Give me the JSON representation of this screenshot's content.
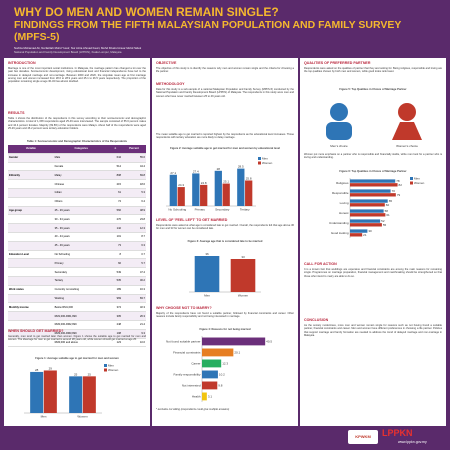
{
  "header": {
    "title": "WHY DO MEN AND WOMEN REMAIN SINGLE?",
    "subtitle": "FINDINGS FROM THE FIFTH MALAYSIAN POPULATION AND FAMILY SURVEY (MPFS-5)",
    "authors": "Norliza Mohamad Ali, Norfazilah Mohd Yusof, Nur Azira Ahmad Fauzi, Mohd Khairul Anuar Mohd Sidek",
    "affiliation": "National Population and Family Development Board (LPPKN), Kuala Lumpur, Malaysia"
  },
  "col1": {
    "intro": {
      "heading": "INTRODUCTION",
      "text": "Marriage is one of the most important social institutions. In Malaysia, the marriage pattern has changed a lot over the past few decades. Socioeconomic development, rising educational level and financial independence have led to the increase in delayed marriage and non-marriage. Between 2000 and 2020, the singulate mean age at first marriage among men and women increased from 28.6 to 28.9 years and 25.1 to 26.5 years respectively. The proportion of the population remaining single at age 30-34 has almost doubled."
    },
    "results": {
      "heading": "RESULTS",
      "text": "Table 1 shows the distribution of the respondents in this survey according to their socioeconomic and demographic characteristics. A total of 1,158 respondents aged 25-49 were interviewed. The sample consisted of 55.6 percent males and 44.4 percent females. Majority (69.8%) of the respondents were Malays. About half of the respondents were aged 25-29 years and 46.2 percent were tertiary education holders."
    },
    "table": {
      "caption": "Table 1: Socioeconomic and Demographic Characteristics of the Respondents",
      "columns": [
        "Variable",
        "Categories",
        "n",
        "Percent"
      ],
      "rows": [
        [
          "Gender",
          "Male",
          "644",
          "55.6"
        ],
        [
          "",
          "Female",
          "514",
          "44.4"
        ],
        [
          "Ethnicity",
          "Malay",
          "808",
          "69.8"
        ],
        [
          "",
          "Chinese",
          "215",
          "18.6"
        ],
        [
          "",
          "Indian",
          "61",
          "5.3"
        ],
        [
          "",
          "Others",
          "74",
          "6.4"
        ],
        [
          "Age group",
          "25 - 29 years",
          "566",
          "48.9"
        ],
        [
          "",
          "30 - 34 years",
          "276",
          "23.8"
        ],
        [
          "",
          "35 - 39 years",
          "142",
          "12.3"
        ],
        [
          "",
          "40 - 44 years",
          "101",
          "8.7"
        ],
        [
          "",
          "45 - 49 years",
          "73",
          "6.3"
        ],
        [
          "Education Level",
          "No Schooling",
          "8",
          "0.7"
        ],
        [
          "",
          "Primary",
          "66",
          "5.7"
        ],
        [
          "",
          "Secondary",
          "549",
          "47.4"
        ],
        [
          "",
          "Tertiary",
          "535",
          "46.2"
        ],
        [
          "Work status",
          "Currently not working",
          "189",
          "16.3"
        ],
        [
          "",
          "Working",
          "969",
          "83.7"
        ],
        [
          "Monthly income",
          "Below RM1,000",
          "374",
          "32.3"
        ],
        [
          "",
          "RM1,000-RM1,999",
          "305",
          "26.3"
        ],
        [
          "",
          "RM2,000-RM2,999",
          "248",
          "21.4"
        ],
        [
          "",
          "RM3,000-RM3,999",
          "108",
          "9.3"
        ],
        [
          "",
          "RM4,000 and above",
          "123",
          "10.6"
        ]
      ]
    },
    "when": {
      "heading": "WHEN SHOULD GET MARRIED?",
      "text": "Generally, men tend to get married later than women. Figure 1 shows the suitable age to get married for men and women. The ideal age for men to get married is around 28 years old, while women should get married at age 25."
    },
    "figure1": {
      "caption": "Figure 1: Average suitable age to get married for men and women",
      "categories": [
        "Men",
        "Women"
      ],
      "series": [
        {
          "name": "Men",
          "color": "#2e75b6",
          "values": [
            28,
            25
          ]
        },
        {
          "name": "Women",
          "color": "#c0392b",
          "values": [
            29,
            25
          ]
        }
      ],
      "ylim": [
        0,
        30
      ]
    }
  },
  "col2": {
    "objective": {
      "heading": "OBJECTIVE",
      "text": "The objective of this study is to identify the reasons why men and women remain single and the criteria for choosing a life partner."
    },
    "methodology": {
      "heading": "METHODOLOGY",
      "text": "Data for this study is a sub-sample of a national Malaysian Population and Family Survey (MPFS-5) conducted by the National Population and Family Development Board (LPPKN) of Malaysia. The respondents in this study were men and women who have never married between 25 to 49 years old."
    },
    "para": "The mean suitable age to get married is reported highest by the respondents as the educational level increases. Those respondents with tertiary education are more likely to delay marriage.",
    "figure2": {
      "caption": "Figure 2: Average suitable age to get married for men and women by educational level",
      "categories": [
        "No Schooling",
        "Primary",
        "Secondary",
        "Tertiary"
      ],
      "series": [
        {
          "name": "Men",
          "color": "#2e75b6",
          "values": [
            27.1,
            27.4,
            28.0,
            28.5
          ]
        },
        {
          "name": "Women",
          "color": "#c0392b",
          "values": [
            24.3,
            24.8,
            25.1,
            25.8
          ]
        }
      ],
      "ylim": [
        20,
        30
      ]
    },
    "left": {
      "heading": "LEVEL OF 'FEEL LEFT' TO GET MARRIED",
      "text": "Respondents were asked at what age is considered late to get married. Overall, the respondents felt that age above 36 for men and 33 for women can be considered late."
    },
    "figure3": {
      "caption": "Figure 3: Average age that is considered late to be married",
      "categories": [
        "Men",
        "Women"
      ],
      "values": [
        36,
        33
      ],
      "colors": [
        "#2e75b6",
        "#c0392b"
      ],
      "ylim": [
        0,
        40
      ]
    },
    "why": {
      "heading": "WHY CHOOSE NOT TO MARRY?",
      "text": "Majority of the respondents have not found a suitable partner, followed by financial constraints and career. Other reasons include family responsibility and not being interested in marriage."
    },
    "figure4": {
      "caption": "Figure 4: Reasons for not being married",
      "categories": [
        "Not found suitable partner",
        "Financial constraints",
        "Career",
        "Family responsibility",
        "Not interested",
        "Health"
      ],
      "values": [
        40.5,
        20.1,
        12.3,
        10.2,
        9.8,
        3.1
      ],
      "colors": [
        "#6b2f7a",
        "#e67e22",
        "#27ae60",
        "#2e75b6",
        "#c0392b",
        "#f1c40f"
      ],
      "xlim": [
        0,
        50
      ]
    },
    "note": "* excludes not willing (respondents could give multiple answers)"
  },
  "col3": {
    "qualities": {
      "heading": "QUALITIES OF PREFERRED PARTNER",
      "text": "Respondents were asked on the qualities of partner that they are looking for. Being religious, responsible and loving are the top qualities chosen by both men and women, while good looks rank lower."
    },
    "figure5": {
      "caption": "Figure 5: Top Qualities in Choice of Marriage Partner",
      "labels": [
        "Men's choice",
        "Women's choice"
      ]
    },
    "text2": "Women put more emphasis on a partner who is responsible and financially stable, while men look for a partner who is loving and understanding.",
    "figure6": {
      "caption": "Figure 6: Top Qualities in Choice of Marriage Partner",
      "categories": [
        "Religious",
        "Responsible",
        "Loving",
        "Honest",
        "Understanding",
        "Good looking"
      ],
      "series": [
        {
          "name": "Men",
          "color": "#2e75b6",
          "values": [
            78,
            70,
            65,
            58,
            52,
            30
          ]
        },
        {
          "name": "Women",
          "color": "#c0392b",
          "values": [
            82,
            79,
            60,
            61,
            55,
            21
          ]
        }
      ],
      "xlim": [
        0,
        100
      ]
    },
    "action": {
      "heading": "CALL FOR ACTION",
      "text": "It is a known fact that weddings are expensive and financial constraints are among the main reasons for remaining single. Programmes on marriage preparation, financial management and matchmaking should be strengthened so that those who intend to marry are able to do so."
    },
    "conclusion": {
      "heading": "CONCLUSION",
      "text": "As the society modernises, more men and women remain single for reasons such as not having found a suitable partner, financial constraints and career. Men and women have different preferences in choosing a life partner. Policies that support marriage and family formation are needed to address the trend of delayed marriage and non-marriage in Malaysia."
    }
  },
  "footer": {
    "logos": [
      "KPWKM",
      "LPPKN"
    ],
    "url": "www.lppkn.gov.my"
  }
}
